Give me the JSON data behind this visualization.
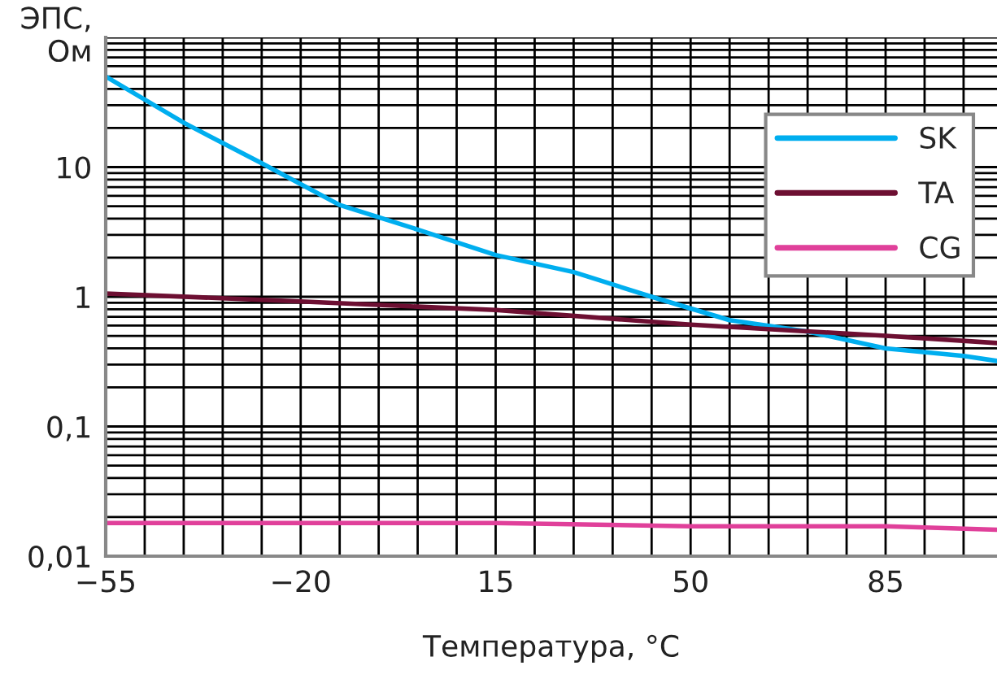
{
  "chart_data": {
    "type": "line",
    "xlabel": "Температура, °C",
    "ylabel": "ЭПС,\nОм",
    "log": "y",
    "grid": true,
    "legend": "top right",
    "xlim": [
      -55,
      105
    ],
    "ylim": [
      0.01,
      100
    ],
    "xticks": [
      {
        "value": -55,
        "label": "−55"
      },
      {
        "value": -48,
        "label": null
      },
      {
        "value": -41,
        "label": null
      },
      {
        "value": -34,
        "label": null
      },
      {
        "value": -27,
        "label": null
      },
      {
        "value": -20,
        "label": "−20"
      },
      {
        "value": -13,
        "label": null
      },
      {
        "value": -6,
        "label": null
      },
      {
        "value": 1,
        "label": null
      },
      {
        "value": 8,
        "label": null
      },
      15,
      {
        "value": 22,
        "label": null
      },
      {
        "value": 29,
        "label": null
      },
      {
        "value": 36,
        "label": null
      },
      {
        "value": 43,
        "label": null
      },
      50,
      {
        "value": 57,
        "label": null
      },
      {
        "value": 64,
        "label": null
      },
      {
        "value": 71,
        "label": null
      },
      {
        "value": 78,
        "label": null
      },
      85,
      {
        "value": 92,
        "label": null
      },
      {
        "value": 99,
        "label": null
      }
    ],
    "yticks": [
      {
        "value": 0.01,
        "label": "0,01"
      },
      {
        "value": 0.02,
        "label": null
      },
      {
        "value": 0.03,
        "label": null
      },
      {
        "value": 0.04,
        "label": null
      },
      {
        "value": 0.05,
        "label": null
      },
      {
        "value": 0.06,
        "label": null
      },
      {
        "value": 0.07,
        "label": null
      },
      {
        "value": 0.08,
        "label": null
      },
      {
        "value": 0.09,
        "label": null
      },
      {
        "value": 0.1,
        "label": "0,1"
      },
      {
        "value": 0.2,
        "label": null
      },
      {
        "value": 0.3,
        "label": null
      },
      {
        "value": 0.4,
        "label": null
      },
      {
        "value": 0.5,
        "label": null
      },
      {
        "value": 0.6,
        "label": null
      },
      {
        "value": 0.7,
        "label": null
      },
      {
        "value": 0.8,
        "label": null
      },
      {
        "value": 0.9,
        "label": null
      },
      1,
      {
        "value": 2,
        "label": null
      },
      {
        "value": 3,
        "label": null
      },
      {
        "value": 4,
        "label": null
      },
      {
        "value": 5,
        "label": null
      },
      {
        "value": 6,
        "label": null
      },
      {
        "value": 7,
        "label": null
      },
      {
        "value": 8,
        "label": null
      },
      {
        "value": 9,
        "label": null
      },
      10,
      {
        "value": 20,
        "label": null
      },
      {
        "value": 30,
        "label": null
      },
      {
        "value": 40,
        "label": null
      },
      {
        "value": 50,
        "label": null
      },
      {
        "value": 60,
        "label": null
      },
      {
        "value": 70,
        "label": null
      },
      {
        "value": 80,
        "label": null
      },
      {
        "value": 90,
        "label": null
      },
      {
        "value": 100,
        "label": null
      }
    ],
    "series": [
      {
        "name": "SK",
        "color": "#00aeef",
        "x": [
          -55,
          -41,
          -27,
          -13,
          1,
          15,
          29,
          43,
          57,
          71,
          85,
          99,
          105
        ],
        "values": [
          50,
          22,
          10.7,
          5.1,
          3.3,
          2.1,
          1.55,
          1.0,
          0.66,
          0.54,
          0.4,
          0.35,
          0.32
        ]
      },
      {
        "name": "TA",
        "color": "#6d0f32",
        "x": [
          -55,
          -20,
          15,
          50,
          85,
          105
        ],
        "values": [
          1.06,
          0.92,
          0.79,
          0.61,
          0.5,
          0.44
        ]
      },
      {
        "name": "CG",
        "color": "#e0409a",
        "x": [
          -55,
          15,
          50,
          85,
          105
        ],
        "values": [
          0.018,
          0.018,
          0.017,
          0.017,
          0.016
        ]
      }
    ]
  }
}
